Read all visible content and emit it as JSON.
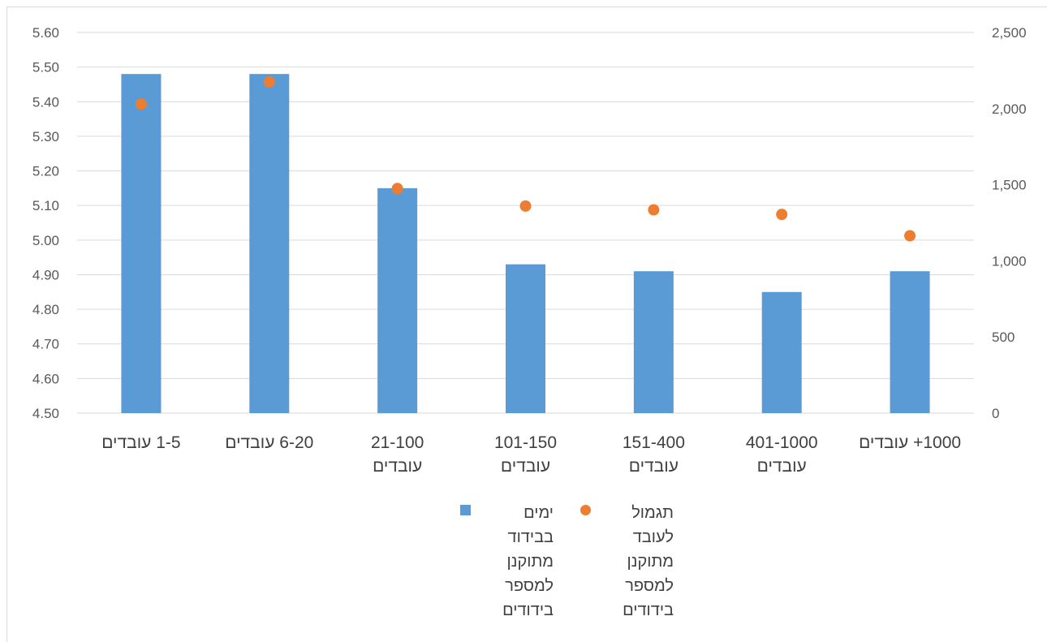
{
  "chart_data": {
    "type": "bar",
    "categories": [
      "1-5 עובדים",
      "6-20 עובדים",
      "21-100 עובדים",
      "101-150 עובדים",
      "151-400 עובדים",
      "401-1000 עובדים",
      "1000+ עובדים"
    ],
    "category_lines": [
      [
        "1-5 עובדים"
      ],
      [
        "6-20 עובדים"
      ],
      [
        "21-100",
        "עובדים"
      ],
      [
        "101-150",
        "עובדים"
      ],
      [
        "151-400",
        "עובדים"
      ],
      [
        "401-1000",
        "עובדים"
      ],
      [
        "1000+ עובדים"
      ]
    ],
    "series": [
      {
        "name": "ימים בבידוד מתוקנן למספר בידודים",
        "type": "bar",
        "axis": "left",
        "color": "#5B9BD5",
        "values": [
          5.48,
          5.48,
          5.15,
          4.93,
          4.91,
          4.85,
          4.91
        ]
      },
      {
        "name": "תגמול לעובד מתוקנן למספר בידודים",
        "type": "scatter",
        "axis": "right",
        "color": "#ED7D31",
        "values": [
          2030,
          2175,
          1475,
          1360,
          1335,
          1305,
          1165
        ]
      }
    ],
    "y_left": {
      "ylim": [
        4.5,
        5.6
      ],
      "ticks": [
        "4.50",
        "4.60",
        "4.70",
        "4.80",
        "4.90",
        "5.00",
        "5.10",
        "5.20",
        "5.30",
        "5.40",
        "5.50",
        "5.60"
      ]
    },
    "y_right": {
      "ylim": [
        0,
        2500
      ],
      "ticks": [
        "0",
        "500",
        "1,000",
        "1,500",
        "2,000",
        "2,500"
      ]
    },
    "grid": true,
    "legend": {
      "position": "bottom",
      "items": [
        {
          "lines": [
            "תגמול",
            "לעובד",
            "מתוקנן",
            "למספר",
            "בידודים"
          ],
          "marker": "circle",
          "color": "#ED7D31"
        },
        {
          "lines": [
            "ימים בבידוד",
            "מתוקנן",
            "למספר",
            "בידודים"
          ],
          "marker": "square",
          "color": "#5B9BD5"
        }
      ]
    }
  }
}
